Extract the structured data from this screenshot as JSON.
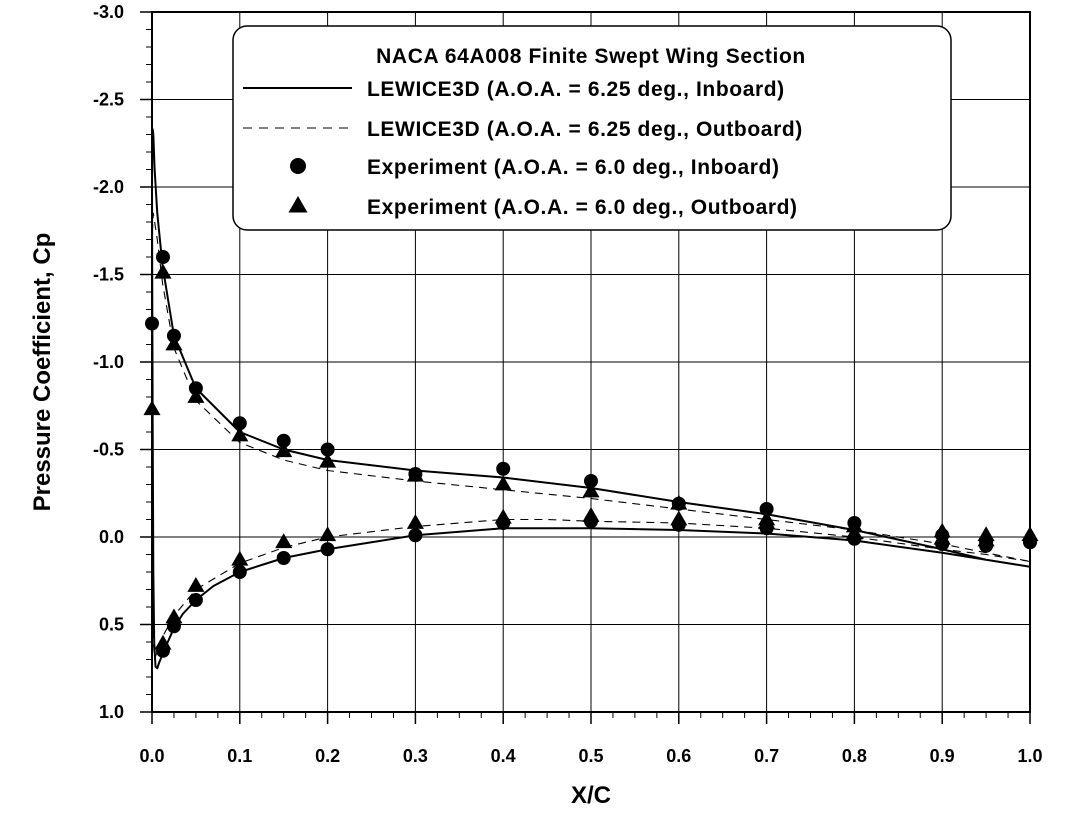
{
  "chart_data": {
    "type": "line",
    "title": "",
    "xlabel": "X/C",
    "ylabel": "Pressure Coefficient, Cp",
    "xlim": [
      0.0,
      1.0
    ],
    "ylim": [
      1.0,
      -3.0
    ],
    "y_axis_inverted": true,
    "grid": true,
    "x_ticks": [
      "0.0",
      "0.1",
      "0.2",
      "0.3",
      "0.4",
      "0.5",
      "0.6",
      "0.7",
      "0.8",
      "0.9",
      "1.0"
    ],
    "y_ticks": [
      "-3.0",
      "-2.5",
      "-2.0",
      "-1.5",
      "-1.0",
      "-0.5",
      "0.0",
      "0.5",
      "1.0"
    ],
    "legend": {
      "title": "NACA 64A008 Finite Swept Wing Section",
      "placement": "top-right"
    },
    "series": [
      {
        "name": "LEWICE3D (A.O.A. = 6.25 deg., Inboard)",
        "style": "solid-line",
        "x": [
          1.0,
          0.95,
          0.9,
          0.8,
          0.7,
          0.6,
          0.5,
          0.4,
          0.3,
          0.25,
          0.2,
          0.15,
          0.1,
          0.07,
          0.05,
          0.035,
          0.025,
          0.018,
          0.012,
          0.008,
          0.006,
          0.004,
          0.0025,
          0.0015,
          0.0008,
          0.0003,
          0.0,
          0.0003,
          0.0008,
          0.0015,
          0.003,
          0.006,
          0.012,
          0.025,
          0.05,
          0.1,
          0.15,
          0.2,
          0.3,
          0.4,
          0.5,
          0.6,
          0.7,
          0.8,
          0.9,
          0.95,
          1.0
        ],
        "y": [
          0.17,
          0.13,
          0.09,
          0.02,
          -0.02,
          -0.04,
          -0.05,
          -0.05,
          -0.01,
          0.03,
          0.07,
          0.12,
          0.2,
          0.28,
          0.36,
          0.44,
          0.52,
          0.6,
          0.67,
          0.72,
          0.75,
          0.74,
          0.6,
          0.2,
          -0.6,
          -1.4,
          -2.0,
          -2.25,
          -2.33,
          -2.3,
          -2.1,
          -1.85,
          -1.55,
          -1.15,
          -0.85,
          -0.6,
          -0.5,
          -0.44,
          -0.38,
          -0.34,
          -0.28,
          -0.2,
          -0.13,
          -0.04,
          0.07,
          0.13,
          0.17
        ]
      },
      {
        "name": "LEWICE3D (A.O.A. = 6.25 deg., Outboard)",
        "style": "dashed-line",
        "x": [
          1.0,
          0.95,
          0.9,
          0.8,
          0.7,
          0.6,
          0.5,
          0.45,
          0.4,
          0.3,
          0.2,
          0.15,
          0.1,
          0.05,
          0.025,
          0.012,
          0.006,
          0.003,
          0.0015,
          0.0005,
          0.0,
          0.0005,
          0.0015,
          0.003,
          0.006,
          0.012,
          0.025,
          0.05,
          0.1,
          0.15,
          0.2,
          0.3,
          0.4,
          0.5,
          0.6,
          0.7,
          0.8,
          0.9,
          0.95,
          1.0
        ],
        "y": [
          0.14,
          0.1,
          0.07,
          0.0,
          -0.05,
          -0.08,
          -0.09,
          -0.1,
          -0.1,
          -0.06,
          0.0,
          0.06,
          0.15,
          0.3,
          0.45,
          0.57,
          0.65,
          0.7,
          0.6,
          0.2,
          -1.0,
          -1.75,
          -1.85,
          -1.8,
          -1.7,
          -1.45,
          -1.08,
          -0.78,
          -0.54,
          -0.44,
          -0.38,
          -0.32,
          -0.27,
          -0.22,
          -0.16,
          -0.1,
          -0.04,
          0.04,
          0.09,
          0.14
        ]
      },
      {
        "name": "Experiment (A.O.A. = 6.0 deg., Inboard)",
        "style": "circle-marker",
        "x": [
          0.0,
          0.0125,
          0.025,
          0.05,
          0.1,
          0.15,
          0.2,
          0.3,
          0.4,
          0.5,
          0.6,
          0.7,
          0.8,
          0.9,
          0.95,
          1.0,
          0.0125,
          0.025,
          0.05,
          0.1,
          0.15,
          0.2,
          0.3,
          0.4,
          0.5,
          0.6,
          0.7,
          0.8,
          0.9,
          0.95
        ],
        "y": [
          -1.22,
          -1.6,
          -1.15,
          -0.85,
          -0.65,
          -0.55,
          -0.5,
          -0.36,
          -0.39,
          -0.32,
          -0.19,
          -0.16,
          -0.08,
          -0.01,
          0.03,
          0.03,
          0.65,
          0.51,
          0.36,
          0.2,
          0.12,
          0.07,
          -0.01,
          -0.08,
          -0.09,
          -0.07,
          -0.05,
          0.01,
          0.04,
          0.05
        ]
      },
      {
        "name": "Experiment (A.O.A. = 6.0 deg., Outboard)",
        "style": "triangle-marker",
        "x": [
          0.0,
          0.0125,
          0.025,
          0.05,
          0.1,
          0.15,
          0.2,
          0.3,
          0.4,
          0.5,
          0.6,
          0.7,
          0.8,
          0.9,
          0.95,
          1.0,
          0.0125,
          0.025,
          0.05,
          0.1,
          0.15,
          0.2,
          0.3,
          0.4,
          0.5,
          0.6,
          0.7,
          0.8,
          0.9,
          0.95
        ],
        "y": [
          -0.73,
          -1.51,
          -1.1,
          -0.8,
          -0.58,
          -0.49,
          -0.43,
          -0.35,
          -0.3,
          -0.26,
          -0.19,
          -0.1,
          -0.06,
          -0.03,
          -0.01,
          -0.01,
          0.61,
          0.46,
          0.28,
          0.13,
          0.03,
          -0.01,
          -0.08,
          -0.11,
          -0.12,
          -0.1,
          -0.08,
          -0.02,
          0.01,
          0.02
        ]
      }
    ]
  }
}
